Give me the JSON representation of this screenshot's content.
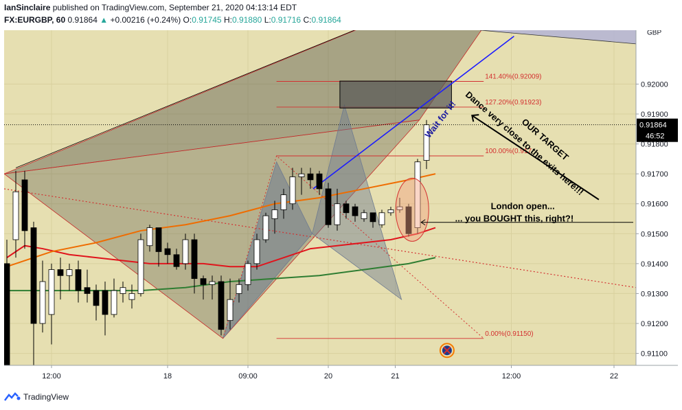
{
  "header": {
    "publisher": "IanSinclaire",
    "published_text": "published on TradingView.com, September 21, 2020 04:13:14 EDT",
    "symbol": "FX:EURGBP, 60",
    "last": "0.91864",
    "change": "+0.00216 (+0.24%)",
    "o_label": "O:",
    "o_value": "0.91745",
    "h_label": "H:",
    "h_value": "0.91880",
    "l_label": "L:",
    "l_value": "0.91716",
    "c_label": "C:",
    "c_value": "0.91864"
  },
  "footer": {
    "brand": "TradingView"
  },
  "colors": {
    "background": "#e6dfb1",
    "candle_up": "#ffffff",
    "candle_down": "#000000",
    "ema_red": "#e0141c",
    "ema_orange": "#ef6c00",
    "sma_green": "#2e7d32",
    "trend_blue": "#1b1bff",
    "price_badge": "#000000",
    "fib": "#d32f2f"
  },
  "chart_data": {
    "type": "candlestick",
    "symbol": "FX:EURGBP",
    "timeframe": "60",
    "ylim": [
      0.9106,
      0.9218
    ],
    "price_axis": {
      "currency": "GBP",
      "ticks": [
        "0.92000",
        "0.91900",
        "0.91800",
        "0.91700",
        "0.91600",
        "0.91500",
        "0.91400",
        "0.91300",
        "0.91200",
        "0.91100"
      ],
      "tick_values": [
        0.92,
        0.919,
        0.918,
        0.917,
        0.916,
        0.915,
        0.914,
        0.913,
        0.912,
        0.911
      ],
      "last_price": "0.91864",
      "countdown": "46:52"
    },
    "time_axis": {
      "ticks": [
        "12:00",
        "18",
        "09:00",
        "20",
        "21",
        "12:00",
        "22"
      ],
      "tick_index": [
        5,
        18,
        27,
        36,
        43.5,
        56.5,
        68
      ]
    },
    "candles": [
      {
        "o": 0.914,
        "h": 0.9148,
        "l": 0.9105,
        "c": 0.9105
      },
      {
        "o": 0.9148,
        "h": 0.9171,
        "l": 0.9142,
        "c": 0.9164
      },
      {
        "o": 0.9168,
        "h": 0.9171,
        "l": 0.9145,
        "c": 0.9151
      },
      {
        "o": 0.9152,
        "h": 0.9154,
        "l": 0.9106,
        "c": 0.912
      },
      {
        "o": 0.912,
        "h": 0.9141,
        "l": 0.9117,
        "c": 0.9134
      },
      {
        "o": 0.9123,
        "h": 0.914,
        "l": 0.9113,
        "c": 0.9138
      },
      {
        "o": 0.9138,
        "h": 0.9142,
        "l": 0.9128,
        "c": 0.9136
      },
      {
        "o": 0.9136,
        "h": 0.914,
        "l": 0.9131,
        "c": 0.9138
      },
      {
        "o": 0.9138,
        "h": 0.9141,
        "l": 0.9127,
        "c": 0.9131
      },
      {
        "o": 0.9132,
        "h": 0.9138,
        "l": 0.9127,
        "c": 0.913
      },
      {
        "o": 0.9131,
        "h": 0.9133,
        "l": 0.9121,
        "c": 0.9126
      },
      {
        "o": 0.9131,
        "h": 0.9134,
        "l": 0.9116,
        "c": 0.9123
      },
      {
        "o": 0.9123,
        "h": 0.9135,
        "l": 0.9122,
        "c": 0.9131
      },
      {
        "o": 0.913,
        "h": 0.9134,
        "l": 0.9127,
        "c": 0.9132
      },
      {
        "o": 0.9128,
        "h": 0.9133,
        "l": 0.9125,
        "c": 0.913
      },
      {
        "o": 0.913,
        "h": 0.915,
        "l": 0.9129,
        "c": 0.9148
      },
      {
        "o": 0.9146,
        "h": 0.9153,
        "l": 0.9144,
        "c": 0.9152
      },
      {
        "o": 0.9152,
        "h": 0.9152,
        "l": 0.9139,
        "c": 0.9144
      },
      {
        "o": 0.9145,
        "h": 0.9147,
        "l": 0.914,
        "c": 0.9143
      },
      {
        "o": 0.9143,
        "h": 0.9145,
        "l": 0.9138,
        "c": 0.9139
      },
      {
        "o": 0.914,
        "h": 0.915,
        "l": 0.9138,
        "c": 0.9148
      },
      {
        "o": 0.9148,
        "h": 0.915,
        "l": 0.913,
        "c": 0.9135
      },
      {
        "o": 0.9135,
        "h": 0.9136,
        "l": 0.9128,
        "c": 0.9133
      },
      {
        "o": 0.9133,
        "h": 0.9136,
        "l": 0.9128,
        "c": 0.9134
      },
      {
        "o": 0.9134,
        "h": 0.9136,
        "l": 0.9116,
        "c": 0.9118
      },
      {
        "o": 0.9121,
        "h": 0.9135,
        "l": 0.9118,
        "c": 0.9128
      },
      {
        "o": 0.913,
        "h": 0.9135,
        "l": 0.9127,
        "c": 0.9133
      },
      {
        "o": 0.9133,
        "h": 0.9141,
        "l": 0.9131,
        "c": 0.914
      },
      {
        "o": 0.914,
        "h": 0.915,
        "l": 0.9138,
        "c": 0.9148
      },
      {
        "o": 0.9148,
        "h": 0.9157,
        "l": 0.9147,
        "c": 0.9156
      },
      {
        "o": 0.9155,
        "h": 0.9161,
        "l": 0.915,
        "c": 0.9158
      },
      {
        "o": 0.9158,
        "h": 0.9165,
        "l": 0.9155,
        "c": 0.9163
      },
      {
        "o": 0.916,
        "h": 0.9172,
        "l": 0.9158,
        "c": 0.9169
      },
      {
        "o": 0.9169,
        "h": 0.9172,
        "l": 0.9163,
        "c": 0.917
      },
      {
        "o": 0.917,
        "h": 0.9172,
        "l": 0.9165,
        "c": 0.9168
      },
      {
        "o": 0.917,
        "h": 0.9171,
        "l": 0.9163,
        "c": 0.9165
      },
      {
        "o": 0.9165,
        "h": 0.9167,
        "l": 0.9152,
        "c": 0.9153
      },
      {
        "o": 0.9153,
        "h": 0.9165,
        "l": 0.9151,
        "c": 0.916
      },
      {
        "o": 0.916,
        "h": 0.9161,
        "l": 0.9155,
        "c": 0.9157
      },
      {
        "o": 0.9159,
        "h": 0.916,
        "l": 0.9154,
        "c": 0.9156
      },
      {
        "o": 0.9155,
        "h": 0.9158,
        "l": 0.9154,
        "c": 0.9157
      },
      {
        "o": 0.9157,
        "h": 0.9157,
        "l": 0.9152,
        "c": 0.9154
      },
      {
        "o": 0.9153,
        "h": 0.9158,
        "l": 0.9152,
        "c": 0.9157
      },
      {
        "o": 0.9157,
        "h": 0.9159,
        "l": 0.9156,
        "c": 0.9158
      },
      {
        "o": 0.9158,
        "h": 0.9162,
        "l": 0.9157,
        "c": 0.9159
      },
      {
        "o": 0.9159,
        "h": 0.916,
        "l": 0.9149,
        "c": 0.915
      },
      {
        "o": 0.9152,
        "h": 0.9175,
        "l": 0.915,
        "c": 0.9174
      },
      {
        "o": 0.91745,
        "h": 0.9188,
        "l": 0.91716,
        "c": 0.91864
      }
    ],
    "indicators": [
      {
        "color": "#e0141c",
        "points": [
          [
            0,
            0.9142
          ],
          [
            2,
            0.9146
          ],
          [
            4,
            0.9145
          ],
          [
            7,
            0.9143
          ],
          [
            10,
            0.9142
          ],
          [
            13,
            0.9141
          ],
          [
            16,
            0.914
          ],
          [
            19,
            0.914
          ],
          [
            22,
            0.914
          ],
          [
            25,
            0.9139
          ],
          [
            28,
            0.9139
          ],
          [
            31,
            0.9142
          ],
          [
            34,
            0.9145
          ],
          [
            37,
            0.9146
          ],
          [
            40,
            0.9147
          ],
          [
            43,
            0.9148
          ],
          [
            46,
            0.915
          ],
          [
            48,
            0.9152
          ]
        ]
      },
      {
        "color": "#ef6c00",
        "points": [
          [
            0,
            0.9139
          ],
          [
            5,
            0.9144
          ],
          [
            10,
            0.9147
          ],
          [
            15,
            0.9151
          ],
          [
            20,
            0.9153
          ],
          [
            25,
            0.9156
          ],
          [
            30,
            0.916
          ],
          [
            35,
            0.9162
          ],
          [
            40,
            0.9165
          ],
          [
            45,
            0.9168
          ],
          [
            48,
            0.917
          ]
        ]
      },
      {
        "color": "#2e7d32",
        "points": [
          [
            0,
            0.9131
          ],
          [
            5,
            0.9131
          ],
          [
            10,
            0.9131
          ],
          [
            15,
            0.9131
          ],
          [
            20,
            0.9132
          ],
          [
            25,
            0.9134
          ],
          [
            30,
            0.9135
          ],
          [
            35,
            0.9136
          ],
          [
            40,
            0.9138
          ],
          [
            45,
            0.914
          ],
          [
            48,
            0.9142
          ]
        ]
      }
    ],
    "fib_levels": [
      {
        "label": "141.40%(0.92009)",
        "value": 0.92009
      },
      {
        "label": "127.20%(0.91923)",
        "value": 0.91923
      },
      {
        "label": "100.00%(0.917",
        "value": 0.9176
      },
      {
        "label": "0.00%(0.91150)",
        "value": 0.9115
      }
    ],
    "target_zone": [
      0.9192,
      0.9201
    ],
    "annotations": [
      {
        "text": "Wait for it!"
      },
      {
        "text": "Dance very close to the exits here!!!"
      },
      {
        "text": "OUR TARGET"
      },
      {
        "text": "London open..."
      },
      {
        "text": "... you BOUGHT this, right?!"
      }
    ]
  }
}
